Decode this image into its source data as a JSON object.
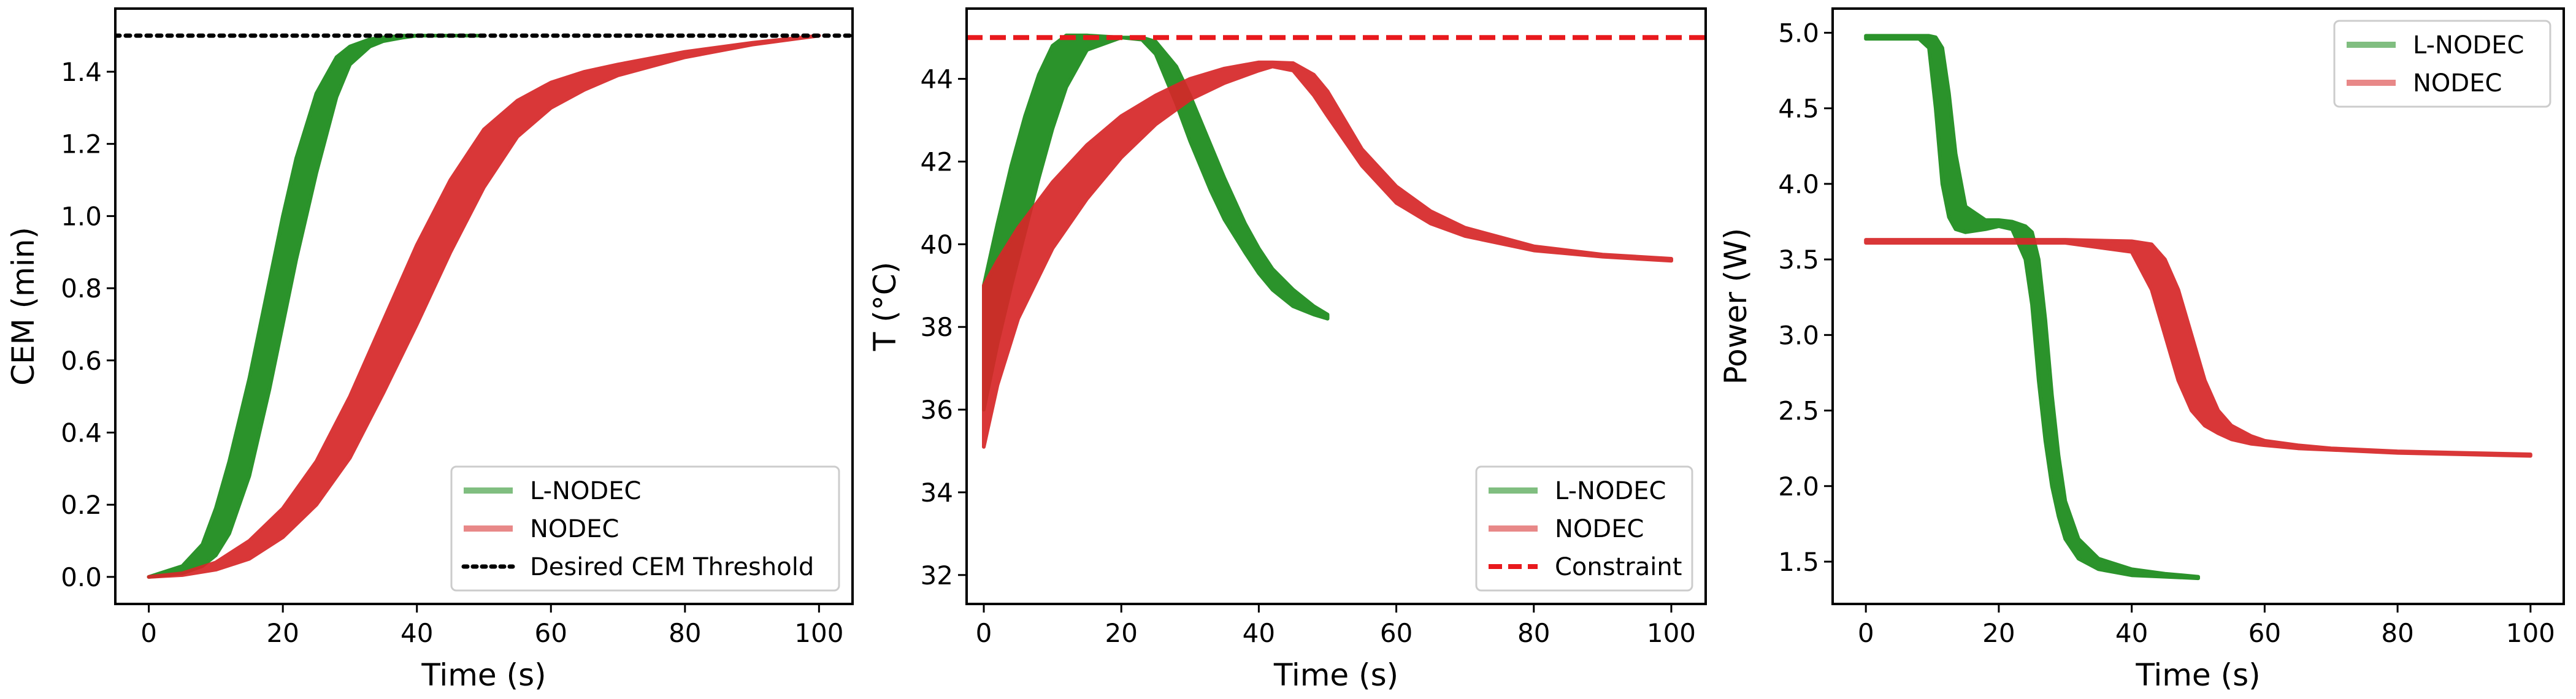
{
  "colors": {
    "lnodec": "#1a8a1a",
    "nodec": "#d62728",
    "constraint": "#e8191d",
    "threshold": "#000000"
  },
  "chart_data": [
    {
      "type": "line",
      "id": "cem",
      "xlabel": "Time (s)",
      "ylabel": "CEM (min)",
      "xlim": [
        -5,
        105
      ],
      "ylim": [
        -0.075,
        1.575
      ],
      "xticks": [
        0,
        20,
        40,
        60,
        80,
        100
      ],
      "xtick_labels": [
        "0",
        "20",
        "40",
        "60",
        "80",
        "100"
      ],
      "yticks": [
        0.0,
        0.2,
        0.4,
        0.6,
        0.8,
        1.0,
        1.2,
        1.4
      ],
      "ytick_labels": [
        "0.0",
        "0.2",
        "0.4",
        "0.6",
        "0.8",
        "1.0",
        "1.2",
        "1.4"
      ],
      "legend_position": "bottom-right",
      "legend": [
        "L-NODEC",
        "NODEC",
        "Desired CEM Threshold"
      ],
      "series": [
        {
          "name": "L-NODEC",
          "band": true,
          "x": [
            0,
            5,
            8,
            10,
            12,
            15,
            18,
            20,
            22,
            25,
            28,
            30,
            33,
            35,
            38,
            40,
            45,
            50
          ],
          "upper": [
            0,
            0.03,
            0.09,
            0.19,
            0.32,
            0.55,
            0.82,
            1.0,
            1.16,
            1.34,
            1.44,
            1.47,
            1.49,
            1.495,
            1.5,
            1.5,
            1.5,
            1.5
          ],
          "lower": [
            0,
            0.01,
            0.03,
            0.06,
            0.12,
            0.28,
            0.52,
            0.7,
            0.88,
            1.12,
            1.33,
            1.42,
            1.47,
            1.485,
            1.495,
            1.5,
            1.5,
            1.5
          ]
        },
        {
          "name": "NODEC",
          "band": true,
          "x": [
            0,
            5,
            10,
            15,
            20,
            25,
            30,
            35,
            40,
            45,
            50,
            55,
            60,
            65,
            70,
            80,
            90,
            100
          ],
          "upper": [
            0,
            0.01,
            0.04,
            0.1,
            0.19,
            0.32,
            0.5,
            0.71,
            0.92,
            1.1,
            1.24,
            1.32,
            1.37,
            1.4,
            1.42,
            1.455,
            1.48,
            1.5
          ],
          "lower": [
            0,
            0.005,
            0.02,
            0.05,
            0.11,
            0.2,
            0.33,
            0.51,
            0.7,
            0.9,
            1.08,
            1.22,
            1.3,
            1.35,
            1.39,
            1.44,
            1.475,
            1.5
          ]
        },
        {
          "name": "Desired CEM Threshold",
          "style": "dotted",
          "y": 1.5
        }
      ]
    },
    {
      "type": "line",
      "id": "temperature",
      "xlabel": "Time (s)",
      "ylabel": "T (°C)",
      "xlim": [
        -2.5,
        105
      ],
      "ylim": [
        31.3,
        45.7
      ],
      "xticks": [
        0,
        20,
        40,
        60,
        80,
        100
      ],
      "xtick_labels": [
        "0",
        "20",
        "40",
        "60",
        "80",
        "100"
      ],
      "yticks": [
        32,
        34,
        36,
        38,
        40,
        42,
        44
      ],
      "ytick_labels": [
        "32",
        "34",
        "36",
        "38",
        "40",
        "42",
        "44"
      ],
      "legend_position": "bottom-right",
      "legend": [
        "L-NODEC",
        "NODEC",
        "Constraint"
      ],
      "series": [
        {
          "name": "L-NODEC",
          "band": true,
          "x": [
            0,
            2,
            4,
            6,
            8,
            10,
            12,
            15,
            20,
            23,
            25,
            28,
            30,
            33,
            35,
            38,
            40,
            42,
            45,
            48,
            50
          ],
          "upper": [
            39.0,
            40.5,
            41.9,
            43.1,
            44.1,
            44.8,
            45.05,
            45.05,
            45.0,
            45.0,
            44.9,
            44.3,
            43.6,
            42.4,
            41.6,
            40.5,
            39.9,
            39.4,
            38.9,
            38.5,
            38.3
          ],
          "lower": [
            36.0,
            37.6,
            39.0,
            40.3,
            41.6,
            42.8,
            43.8,
            44.7,
            45.0,
            44.95,
            44.6,
            43.4,
            42.5,
            41.3,
            40.6,
            39.8,
            39.3,
            38.9,
            38.5,
            38.3,
            38.2
          ]
        },
        {
          "name": "NODEC",
          "band": true,
          "x": [
            0,
            2,
            5,
            10,
            15,
            20,
            25,
            30,
            35,
            40,
            42,
            45,
            48,
            50,
            55,
            60,
            65,
            70,
            80,
            90,
            100
          ],
          "upper": [
            39.0,
            39.6,
            40.4,
            41.5,
            42.4,
            43.1,
            43.6,
            44.0,
            44.25,
            44.4,
            44.4,
            44.38,
            44.1,
            43.7,
            42.3,
            41.4,
            40.8,
            40.4,
            39.95,
            39.75,
            39.65
          ],
          "lower": [
            35.1,
            36.6,
            38.2,
            39.9,
            41.1,
            42.1,
            42.9,
            43.5,
            43.9,
            44.2,
            44.3,
            44.2,
            43.6,
            43.1,
            41.9,
            41.0,
            40.5,
            40.2,
            39.85,
            39.7,
            39.6
          ]
        },
        {
          "name": "Constraint",
          "style": "dashed",
          "y": 45.0
        }
      ]
    },
    {
      "type": "line",
      "id": "power",
      "xlabel": "Time (s)",
      "ylabel": "Power (W)",
      "xlim": [
        -5,
        105
      ],
      "ylim": [
        1.22,
        5.16
      ],
      "xticks": [
        0,
        20,
        40,
        60,
        80,
        100
      ],
      "xtick_labels": [
        "0",
        "20",
        "40",
        "60",
        "80",
        "100"
      ],
      "yticks": [
        1.5,
        2.0,
        2.5,
        3.0,
        3.5,
        4.0,
        4.5,
        5.0
      ],
      "ytick_labels": [
        "1.5",
        "2.0",
        "2.5",
        "3.0",
        "3.5",
        "4.0",
        "4.5",
        "5.0"
      ],
      "legend_position": "top-right",
      "legend": [
        "L-NODEC",
        "NODEC"
      ],
      "series": [
        {
          "name": "L-NODEC",
          "band": true,
          "x": [
            0,
            8,
            9.5,
            10.5,
            11.5,
            12.5,
            13.5,
            15,
            18,
            20,
            22,
            24,
            25,
            26,
            27,
            28,
            29,
            30,
            32,
            35,
            40,
            45,
            50
          ],
          "upper": [
            4.98,
            4.98,
            4.98,
            4.97,
            4.9,
            4.6,
            4.2,
            3.85,
            3.76,
            3.76,
            3.75,
            3.72,
            3.68,
            3.5,
            3.1,
            2.6,
            2.2,
            1.9,
            1.65,
            1.52,
            1.45,
            1.42,
            1.4
          ],
          "lower": [
            4.96,
            4.96,
            4.9,
            4.5,
            4.0,
            3.78,
            3.7,
            3.68,
            3.7,
            3.72,
            3.7,
            3.5,
            3.2,
            2.7,
            2.3,
            2.0,
            1.8,
            1.65,
            1.52,
            1.45,
            1.41,
            1.4,
            1.39
          ]
        },
        {
          "name": "NODEC",
          "band": true,
          "x": [
            0,
            10,
            20,
            30,
            40,
            43,
            45,
            47,
            49,
            51,
            53,
            55,
            58,
            60,
            65,
            70,
            80,
            90,
            100
          ],
          "upper": [
            3.63,
            3.63,
            3.63,
            3.63,
            3.62,
            3.6,
            3.5,
            3.3,
            3.0,
            2.7,
            2.5,
            2.4,
            2.33,
            2.3,
            2.27,
            2.25,
            2.23,
            2.22,
            2.21
          ],
          "lower": [
            3.61,
            3.61,
            3.61,
            3.61,
            3.55,
            3.3,
            3.0,
            2.7,
            2.5,
            2.4,
            2.35,
            2.31,
            2.28,
            2.27,
            2.25,
            2.24,
            2.22,
            2.21,
            2.2
          ]
        }
      ]
    }
  ]
}
